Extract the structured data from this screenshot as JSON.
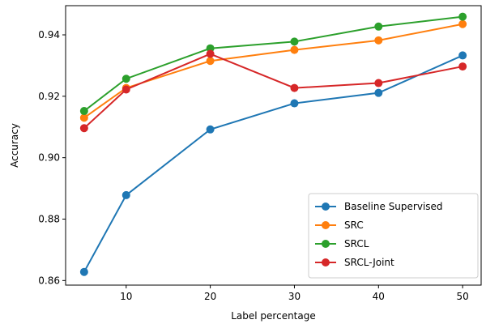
{
  "chart_data": {
    "type": "line",
    "xlabel": "Label percentage",
    "ylabel": "Accuracy",
    "x": [
      5,
      10,
      20,
      30,
      40,
      50
    ],
    "xlim": [
      2.8,
      52.2
    ],
    "ylim": [
      0.8585,
      0.9495
    ],
    "x_ticks": [
      10,
      20,
      30,
      40,
      50
    ],
    "x_tick_labels": [
      "10",
      "20",
      "30",
      "40",
      "50"
    ],
    "y_ticks": [
      0.86,
      0.88,
      0.9,
      0.92,
      0.94
    ],
    "y_tick_labels": [
      "0.86",
      "0.88",
      "0.90",
      "0.92",
      "0.94"
    ],
    "grid": false,
    "legend_position": "lower-right",
    "series": [
      {
        "name": "Baseline Supervised",
        "color": "#1f77b4",
        "values": [
          0.8628,
          0.8878,
          0.9092,
          0.9177,
          0.9211,
          0.9333
        ]
      },
      {
        "name": "SRC",
        "color": "#ff7f0e",
        "values": [
          0.913,
          0.9227,
          0.9315,
          0.9351,
          0.9382,
          0.9435
        ]
      },
      {
        "name": "SRCL",
        "color": "#2ca02c",
        "values": [
          0.9152,
          0.9257,
          0.9356,
          0.9378,
          0.9427,
          0.9459
        ]
      },
      {
        "name": "SRCL-Joint",
        "color": "#d62728",
        "values": [
          0.9096,
          0.9222,
          0.9338,
          0.9227,
          0.9243,
          0.9297
        ]
      }
    ]
  }
}
